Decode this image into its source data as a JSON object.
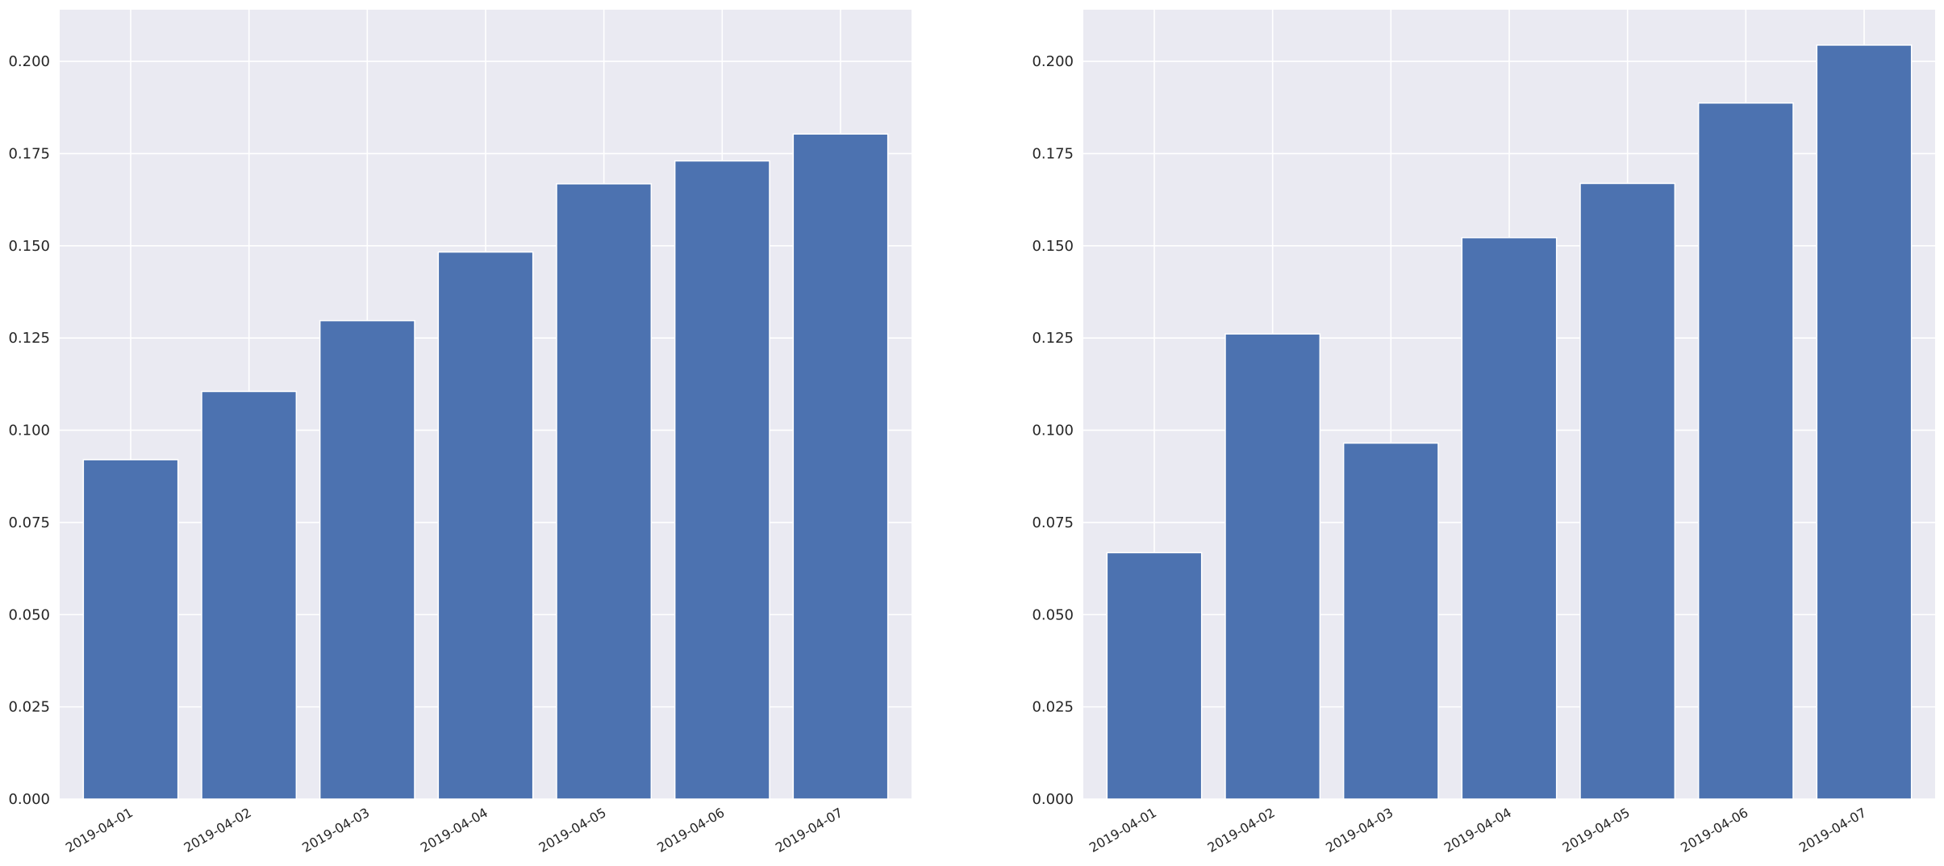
{
  "chart_data": [
    {
      "type": "bar",
      "title": "",
      "xlabel": "",
      "ylabel": "",
      "categories": [
        "2019-04-01",
        "2019-04-02",
        "2019-04-03",
        "2019-04-04",
        "2019-04-05",
        "2019-04-06",
        "2019-04-07"
      ],
      "values": [
        0.092,
        0.1105,
        0.1297,
        0.1483,
        0.1668,
        0.173,
        0.1803
      ],
      "ylim": [
        0,
        0.214
      ],
      "yticks": [
        0.0,
        0.025,
        0.05,
        0.075,
        0.1,
        0.125,
        0.15,
        0.175,
        0.2
      ],
      "ytick_labels": [
        "0.000",
        "0.025",
        "0.050",
        "0.075",
        "0.100",
        "0.125",
        "0.150",
        "0.175",
        "0.200"
      ],
      "grid": true,
      "bar_color": "#4C72B0",
      "background_color": "#EAEAF2"
    },
    {
      "type": "bar",
      "title": "",
      "xlabel": "",
      "ylabel": "",
      "categories": [
        "2019-04-01",
        "2019-04-02",
        "2019-04-03",
        "2019-04-04",
        "2019-04-05",
        "2019-04-06",
        "2019-04-07"
      ],
      "values": [
        0.0668,
        0.1261,
        0.0965,
        0.1522,
        0.1669,
        0.1887,
        0.2044
      ],
      "ylim": [
        0,
        0.214
      ],
      "yticks": [
        0.0,
        0.025,
        0.05,
        0.075,
        0.1,
        0.125,
        0.15,
        0.175,
        0.2
      ],
      "ytick_labels": [
        "0.000",
        "0.025",
        "0.050",
        "0.075",
        "0.100",
        "0.125",
        "0.150",
        "0.175",
        "0.200"
      ],
      "grid": true,
      "bar_color": "#4C72B0",
      "background_color": "#EAEAF2"
    }
  ]
}
